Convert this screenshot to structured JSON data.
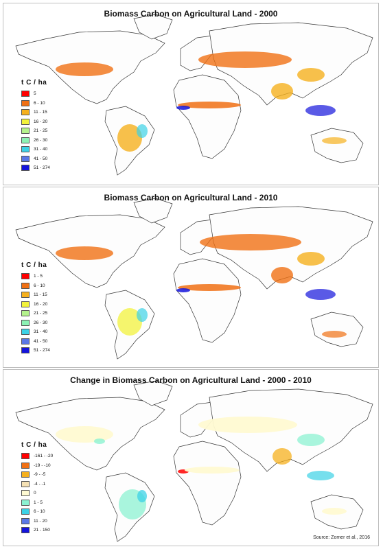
{
  "panels": [
    {
      "title": "Biomass Carbon on Agricultural Land - 2000",
      "legend_title": "t C / ha",
      "legend": [
        {
          "label": "5",
          "color": "#ff0000"
        },
        {
          "label": "6 - 10",
          "color": "#f07014"
        },
        {
          "label": "11 - 15",
          "color": "#f5b01e"
        },
        {
          "label": "16 - 20",
          "color": "#f2f23c"
        },
        {
          "label": "21 - 25",
          "color": "#b4f28c"
        },
        {
          "label": "26 - 30",
          "color": "#8cf2b4"
        },
        {
          "label": "31 - 40",
          "color": "#3cd2e6"
        },
        {
          "label": "41 - 50",
          "color": "#5a78e6"
        },
        {
          "label": "51 - 274",
          "color": "#1414dc"
        }
      ]
    },
    {
      "title": "Biomass Carbon on Agricultural Land - 2010",
      "legend_title": "t C / ha",
      "legend": [
        {
          "label": "1 - 5",
          "color": "#ff0000"
        },
        {
          "label": "6 - 10",
          "color": "#f07014"
        },
        {
          "label": "11 - 15",
          "color": "#f5b01e"
        },
        {
          "label": "16 - 20",
          "color": "#f2f23c"
        },
        {
          "label": "21 - 25",
          "color": "#b4f28c"
        },
        {
          "label": "26 - 30",
          "color": "#8cf2b4"
        },
        {
          "label": "31 - 40",
          "color": "#3cd2e6"
        },
        {
          "label": "41 - 50",
          "color": "#5a78e6"
        },
        {
          "label": "51 - 274",
          "color": "#1414dc"
        }
      ]
    },
    {
      "title": "Change in Biomass Carbon on Agricultural Land - 2000 - 2010",
      "legend_title": "t C / ha",
      "legend": [
        {
          "label": "-161 - -20",
          "color": "#ff0000"
        },
        {
          "label": "-19 - -10",
          "color": "#f07014"
        },
        {
          "label": "-9 - -5",
          "color": "#f5b01e"
        },
        {
          "label": "-4 - -1",
          "color": "#f5e1b4"
        },
        {
          "label": "0",
          "color": "#fffad2"
        },
        {
          "label": "1 - 5",
          "color": "#8cf2d2"
        },
        {
          "label": "6 - 10",
          "color": "#3cd2e6"
        },
        {
          "label": "11 - 20",
          "color": "#5a78e6"
        },
        {
          "label": "21 - 150",
          "color": "#1414dc"
        }
      ]
    }
  ],
  "source": "Source: Zomer et al., 2016"
}
